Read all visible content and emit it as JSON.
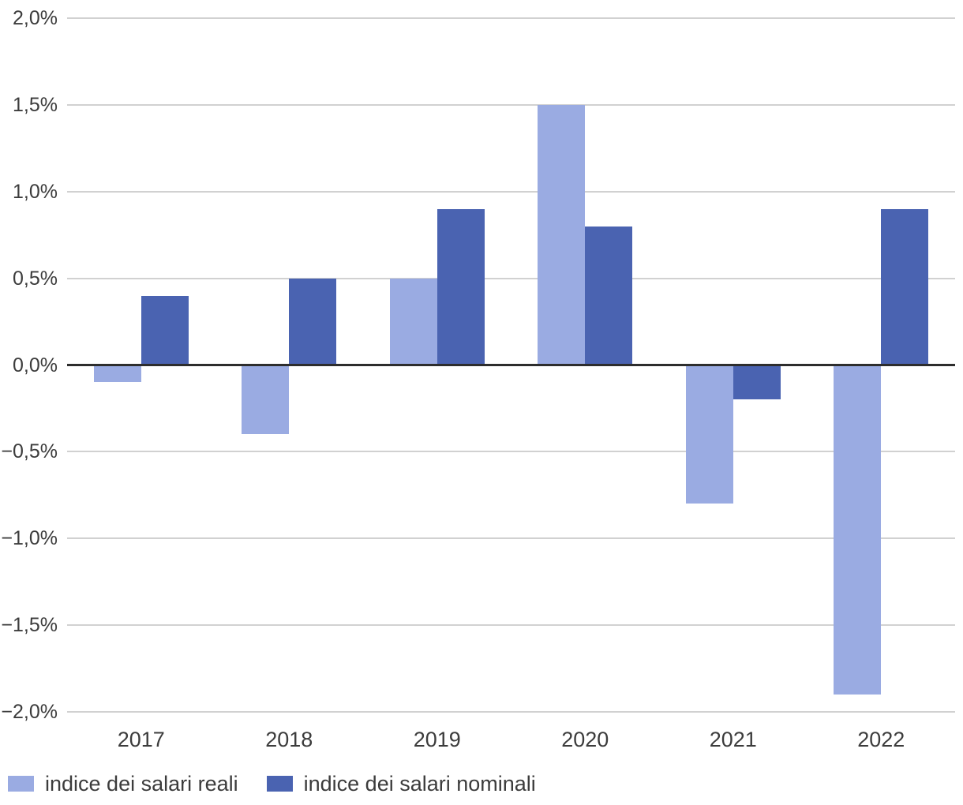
{
  "chart_data": {
    "type": "bar",
    "title": "",
    "xlabel": "",
    "ylabel": "",
    "categories": [
      "2017",
      "2018",
      "2019",
      "2020",
      "2021",
      "2022"
    ],
    "series": [
      {
        "name": "indice dei salari reali",
        "slug": "reali",
        "color": "#9AABE2",
        "values": [
          -0.1,
          -0.4,
          0.5,
          1.5,
          -0.8,
          -1.9
        ]
      },
      {
        "name": "indice dei salari nominali",
        "slug": "nominali",
        "color": "#4A63B1",
        "values": [
          0.4,
          0.5,
          0.9,
          0.8,
          -0.2,
          0.9
        ]
      }
    ],
    "value_unit": "%",
    "ylim": [
      -2.0,
      2.0
    ],
    "y_ticks": [
      {
        "value": 2.0,
        "label": "2,0%"
      },
      {
        "value": 1.5,
        "label": "1,5%"
      },
      {
        "value": 1.0,
        "label": "1,0%"
      },
      {
        "value": 0.5,
        "label": "0,5%"
      },
      {
        "value": 0.0,
        "label": "0,0%"
      },
      {
        "value": -0.5,
        "label": "−0,5%"
      },
      {
        "value": -1.0,
        "label": "−1,0%"
      },
      {
        "value": -1.5,
        "label": "−1,5%"
      },
      {
        "value": -2.0,
        "label": "−2,0%"
      }
    ],
    "grid": true,
    "legend_position": "bottom-left"
  },
  "colors": {
    "series_real": "#9AABE2",
    "series_nominal": "#4A63B1",
    "gridline": "#D1D1D1",
    "zero_line": "#2D2D2D",
    "text": "#3C3C3C",
    "background": "#FFFFFF"
  }
}
